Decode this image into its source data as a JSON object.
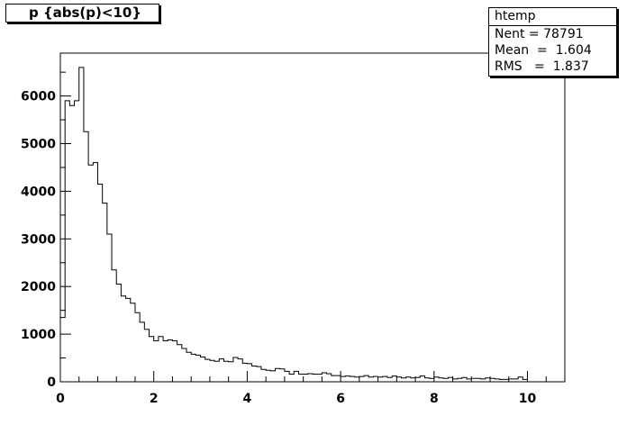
{
  "title": "p {abs(p)<10}",
  "stats": {
    "name": "htemp",
    "rows": [
      {
        "label": "Nent",
        "value": "78791"
      },
      {
        "label": "Mean",
        "value": "1.604"
      },
      {
        "label": "RMS",
        "value": "1.837"
      }
    ]
  },
  "chart_data": {
    "type": "bar",
    "histogram": "step",
    "xlim": [
      0,
      10.8
    ],
    "ylim": [
      0,
      6900
    ],
    "bin_width": 0.1,
    "bin_start": 0,
    "x_ticks": [
      "0",
      "2",
      "4",
      "6",
      "8",
      "10"
    ],
    "y_ticks": [
      "0",
      "1000",
      "2000",
      "3000",
      "4000",
      "5000",
      "6000"
    ],
    "values": [
      1350,
      5900,
      5800,
      5900,
      6600,
      5250,
      4550,
      4600,
      4150,
      3750,
      3100,
      2350,
      2050,
      1800,
      1750,
      1650,
      1450,
      1250,
      1100,
      950,
      860,
      950,
      860,
      880,
      860,
      780,
      700,
      620,
      580,
      560,
      520,
      470,
      450,
      430,
      480,
      430,
      420,
      510,
      480,
      390,
      380,
      330,
      320,
      260,
      240,
      230,
      280,
      270,
      220,
      160,
      220,
      160,
      160,
      170,
      160,
      160,
      190,
      170,
      130,
      130,
      110,
      120,
      110,
      100,
      110,
      130,
      100,
      110,
      100,
      110,
      90,
      120,
      100,
      80,
      100,
      80,
      90,
      120,
      80,
      70,
      100,
      80,
      70,
      90,
      60,
      70,
      90,
      60,
      70,
      70,
      60,
      80,
      70,
      60,
      50,
      50,
      60,
      60,
      100,
      50
    ]
  }
}
